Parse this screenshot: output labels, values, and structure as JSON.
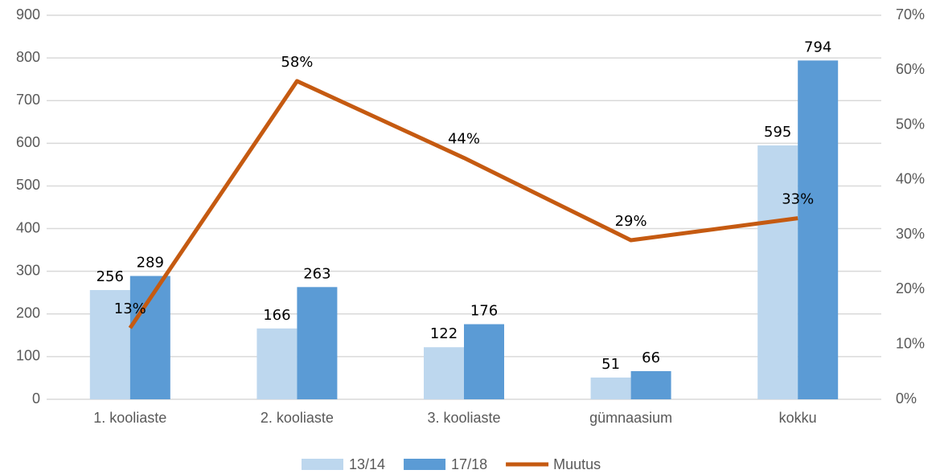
{
  "chart_data": {
    "type": "bar",
    "categories": [
      "1. kooliaste",
      "2. kooliaste",
      "3. kooliaste",
      "gümnaasium",
      "kokku"
    ],
    "series": [
      {
        "name": "13/14",
        "color": "#bdd7ee",
        "values": [
          256,
          166,
          122,
          51,
          595
        ]
      },
      {
        "name": "17/18",
        "color": "#5b9bd5",
        "values": [
          289,
          263,
          176,
          66,
          794
        ]
      },
      {
        "name": "Muutus",
        "type": "line",
        "axis": "y2",
        "color": "#c55a11",
        "values": [
          13,
          58,
          44,
          29,
          33
        ],
        "value_labels": [
          "13%",
          "58%",
          "44%",
          "29%",
          "33%"
        ]
      }
    ],
    "ylim": [
      0,
      900
    ],
    "yticks": [
      0,
      100,
      200,
      300,
      400,
      500,
      600,
      700,
      800,
      900
    ],
    "y2lim": [
      0,
      70
    ],
    "y2ticks": [
      {
        "value": 0,
        "label": "0%"
      },
      {
        "value": 10,
        "label": "10%"
      },
      {
        "value": 20,
        "label": "20%"
      },
      {
        "value": 30,
        "label": "30%"
      },
      {
        "value": 40,
        "label": "40%"
      },
      {
        "value": 50,
        "label": "50%"
      },
      {
        "value": 60,
        "label": "60%"
      },
      {
        "value": 70,
        "label": "70%"
      }
    ],
    "grid": true,
    "legend": "bottom"
  }
}
